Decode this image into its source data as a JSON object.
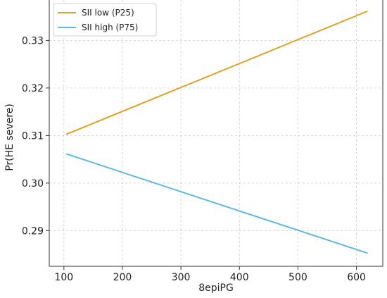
{
  "chart_data": {
    "type": "line",
    "title": "",
    "xlabel": "8epiPG",
    "ylabel": "Pr(HE severe)",
    "xlim": [
      75,
      645
    ],
    "ylim": [
      0.2825,
      0.3385
    ],
    "xticks": [
      100,
      200,
      300,
      400,
      500,
      600
    ],
    "yticks": [
      0.29,
      0.3,
      0.31,
      0.32,
      0.33
    ],
    "xtick_labels": [
      "100",
      "200",
      "300",
      "400",
      "500",
      "600"
    ],
    "ytick_labels": [
      "0.29",
      "0.30",
      "0.31",
      "0.32",
      "0.33"
    ],
    "grid": true,
    "legend_position": "top-left",
    "series": [
      {
        "name": "SII low (P25)",
        "color": "#E0A12B",
        "x": [
          105,
          618
        ],
        "y": [
          0.3103,
          0.3361
        ]
      },
      {
        "name": "SII high (P75)",
        "color": "#5DB9E3",
        "x": [
          105,
          618
        ],
        "y": [
          0.3061,
          0.2853
        ]
      }
    ]
  }
}
